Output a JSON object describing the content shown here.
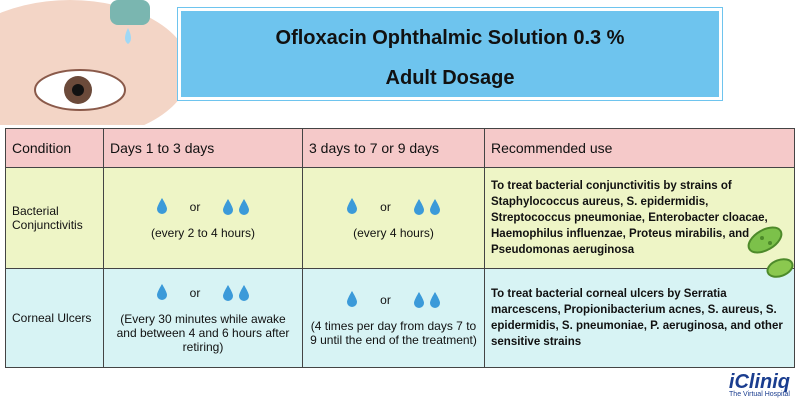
{
  "header": {
    "title": "Ofloxacin Ophthalmic Solution 0.3 %",
    "subtitle": "Adult Dosage"
  },
  "table": {
    "columns": [
      "Condition",
      "Days 1 to 3 days",
      "3 days to 7 or 9 days",
      "Recommended use"
    ],
    "rows": [
      {
        "condition": "Bacterial Conjunctivitis",
        "days_1_to_3": {
          "joiner": "or",
          "frequency": "(every 2 to 4 hours)"
        },
        "days_3_to_9": {
          "joiner": "or",
          "frequency": "(every 4 hours)"
        },
        "recommended_use": "To treat bacterial conjunctivitis by strains of Staphylococcus aureus, S. epidermidis, Streptococcus pneumoniae, Enterobacter cloacae, Haemophilus influenzae, Proteus mirabilis, and Pseudomonas aeruginosa"
      },
      {
        "condition": "Corneal Ulcers",
        "days_1_to_3": {
          "joiner": "or",
          "frequency": "(Every 30 minutes while awake and between 4 and 6 hours after retiring)"
        },
        "days_3_to_9": {
          "joiner": "or",
          "frequency": "(4 times per day from days 7 to 9 until the end of the treatment)"
        },
        "recommended_use": "To treat bacterial corneal ulcers by Serratia marcescens, Propionibacterium acnes, S. aureus, S. epidermidis, S. pneumoniae, P. aeruginosa, and other sensitive strains"
      }
    ]
  },
  "logo": {
    "name": "iCliniq",
    "tagline": "The Virtual Hospital"
  }
}
